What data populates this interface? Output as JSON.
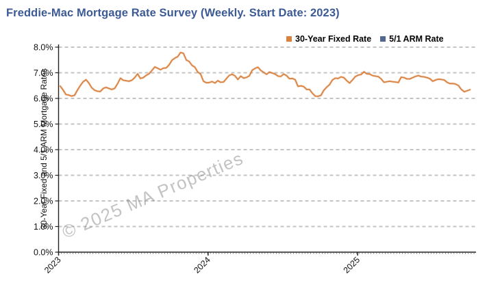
{
  "title": "Freddie-Mac Mortgage Rate Survey (Weekly. Start Date: 2023)",
  "watermark": "© 2025 MA Properties",
  "colors": {
    "title": "#3C5A96",
    "fixed_rate_line": "#D9813F",
    "arm_rate_marker": "#54678F",
    "gridline": "#C3C3C3",
    "axis": "#222222",
    "watermark": "#8C8C8C"
  },
  "legend": {
    "items": [
      {
        "label": "30-Year Fixed Rate",
        "color": "#D9813F"
      },
      {
        "label": "5/1 ARM Rate",
        "color": "#54678F"
      }
    ],
    "position": "top-right"
  },
  "chart_data": {
    "type": "line",
    "title": "Freddie-Mac Mortgage Rate Survey (Weekly. Start Date: 2023)",
    "xlabel": "",
    "ylabel": "30-Year Fixed and 5/1 ARM Mortgage Rates",
    "ylim": [
      0,
      8
    ],
    "y_tick_labels": [
      "0.0%",
      "1.0%",
      "2.0%",
      "3.0%",
      "4.0%",
      "5.0%",
      "6.0%",
      "7.0%",
      "8.0%"
    ],
    "x_tick_labels": [
      "2023",
      "2024",
      "2025"
    ],
    "x_frequency": "weekly",
    "grid": "horizontal-dashed",
    "legend_position": "top-right",
    "series": [
      {
        "name": "30-Year Fixed Rate",
        "color": "#D9813F",
        "unit": "%",
        "values": [
          6.48,
          6.33,
          6.15,
          6.13,
          6.09,
          6.12,
          6.32,
          6.5,
          6.65,
          6.73,
          6.6,
          6.42,
          6.32,
          6.28,
          6.27,
          6.39,
          6.43,
          6.39,
          6.35,
          6.39,
          6.57,
          6.79,
          6.71,
          6.69,
          6.67,
          6.71,
          6.81,
          6.96,
          6.78,
          6.81,
          6.9,
          6.96,
          7.09,
          7.23,
          7.18,
          7.12,
          7.18,
          7.19,
          7.31,
          7.49,
          7.57,
          7.63,
          7.79,
          7.76,
          7.5,
          7.44,
          7.29,
          7.22,
          7.03,
          6.95,
          6.67,
          6.61,
          6.62,
          6.66,
          6.6,
          6.69,
          6.63,
          6.64,
          6.77,
          6.9,
          6.94,
          6.88,
          6.74,
          6.87,
          6.79,
          6.82,
          6.88,
          7.1,
          7.17,
          7.22,
          7.09,
          7.02,
          6.94,
          7.03,
          6.99,
          6.95,
          6.87,
          6.86,
          6.95,
          6.89,
          6.77,
          6.78,
          6.73,
          6.47,
          6.49,
          6.46,
          6.35,
          6.35,
          6.2,
          6.09,
          6.08,
          6.12,
          6.32,
          6.44,
          6.54,
          6.72,
          6.79,
          6.78,
          6.84,
          6.81,
          6.69,
          6.6,
          6.72,
          6.85,
          6.91,
          6.93,
          7.04,
          6.96,
          6.95,
          6.89,
          6.87,
          6.85,
          6.76,
          6.63,
          6.65,
          6.67,
          6.65,
          6.64,
          6.62,
          6.83,
          6.81,
          6.76,
          6.76,
          6.81,
          6.86,
          6.89,
          6.85,
          6.84,
          6.81,
          6.77,
          6.67,
          6.72,
          6.75,
          6.74,
          6.72,
          6.63,
          6.58,
          6.58,
          6.56,
          6.5,
          6.35,
          6.26,
          6.3,
          6.34
        ]
      },
      {
        "name": "5/1 ARM Rate",
        "color": "#54678F",
        "unit": "%",
        "values": []
      }
    ]
  }
}
